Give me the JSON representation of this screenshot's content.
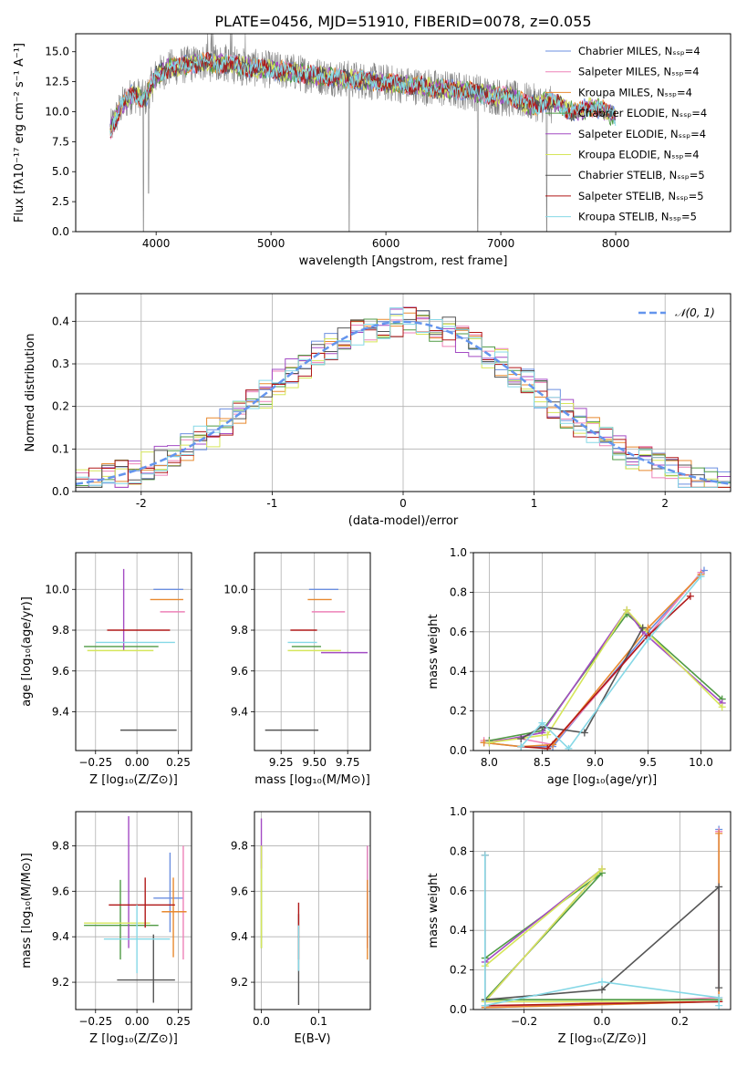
{
  "figure": {
    "title": "PLATE=0456, MJD=51910, FIBERID=0078, z=0.055"
  },
  "colors": {
    "Chabrier MILES": "#6b8fe0",
    "Salpeter MILES": "#ee82b8",
    "Kroupa MILES": "#e8892f",
    "Chabrier ELODIE": "#4f9a44",
    "Salpeter ELODIE": "#a34bc4",
    "Kroupa ELODIE": "#d6e65a",
    "Chabrier STELIB": "#555555",
    "Salpeter STELIB": "#b01818",
    "Kroupa STELIB": "#86d8e6",
    "data": "#808080",
    "normal": "#6495ed"
  },
  "chart_data": [
    {
      "id": "spectrum",
      "type": "line",
      "title": "PLATE=0456, MJD=51910, FIBERID=0078, z=0.055",
      "xlabel": "wavelength [Angstrom, rest frame]",
      "ylabel": "Flux [fλ10⁻¹⁷ erg cm⁻² s⁻¹ A⁻¹]",
      "xlim": [
        3300,
        9000
      ],
      "ylim": [
        0,
        16.5
      ],
      "xticks": [
        4000,
        5000,
        6000,
        7000,
        8000
      ],
      "yticks": [
        0.0,
        2.5,
        5.0,
        7.5,
        10.0,
        12.5,
        15.0
      ],
      "grid": false,
      "legend_position": "top-right",
      "legend": [
        "Chabrier MILES, Nₛₛₚ=4",
        "Salpeter MILES, Nₛₛₚ=4",
        "Kroupa MILES, Nₛₛₚ=4",
        "Chabrier ELODIE, Nₛₛₚ=4",
        "Salpeter ELODIE, Nₛₛₚ=4",
        "Kroupa ELODIE, Nₛₛₚ=4",
        "Chabrier STELIB, Nₛₛₚ=5",
        "Salpeter STELIB, Nₛₛₚ=5",
        "Kroupa STELIB, Nₛₛₚ=5"
      ],
      "continuum": {
        "x": [
          3600,
          3700,
          3800,
          3900,
          4000,
          4100,
          4200,
          4400,
          4600,
          4800,
          5000,
          5200,
          5400,
          5600,
          5800,
          6000,
          6200,
          6400,
          6600,
          6800,
          7000,
          7200,
          7400,
          7600,
          7800,
          8000,
          8200,
          8400
        ],
        "y": [
          8.5,
          10.5,
          11.5,
          11.0,
          13.0,
          13.6,
          13.8,
          14.1,
          14.0,
          13.7,
          13.5,
          13.3,
          13.0,
          12.8,
          12.6,
          12.4,
          12.2,
          12.0,
          11.8,
          11.6,
          11.2,
          10.9,
          10.6,
          10.4,
          10.1,
          9.9,
          9.6,
          9.4
        ]
      },
      "absorption_dips": [
        {
          "x": 3890,
          "y": 0.0
        },
        {
          "x": 3935,
          "y": 3.2
        },
        {
          "x": 5680,
          "y": 0.0
        },
        {
          "x": 6800,
          "y": 0.0
        },
        {
          "x": 7400,
          "y": 0.0
        }
      ]
    },
    {
      "id": "residuals",
      "type": "histogram",
      "xlabel": "(data-model)/error",
      "ylabel": "Normed distribution",
      "xlim": [
        -2.5,
        2.5
      ],
      "ylim": [
        0,
        0.465
      ],
      "xticks": [
        -2,
        -1,
        0,
        1,
        2
      ],
      "yticks": [
        0.0,
        0.1,
        0.2,
        0.3,
        0.4
      ],
      "grid": true,
      "legend_position": "top-right",
      "legend": [
        "𝒩(0, 1)"
      ],
      "bin_width": 0.1,
      "bin_start": -2.5,
      "mean_profile": "normal(0,1) with per-model noise"
    },
    {
      "id": "age_vs_Z",
      "type": "errorbar",
      "xlabel": "Z [log₁₀(Z/Z⊙)]",
      "ylabel": "age  [log₁₀(age/yr)]",
      "xlim": [
        -0.37,
        0.33
      ],
      "ylim": [
        9.21,
        10.18
      ],
      "xticks": [
        -0.25,
        0.0,
        0.25
      ],
      "xticklabels": [
        "−0.25",
        "0.00",
        "0.25"
      ],
      "yticks": [
        9.4,
        9.6,
        9.8,
        10.0
      ],
      "grid": true
    },
    {
      "id": "age_vs_mass",
      "type": "errorbar",
      "xlabel": "mass [log₁₀(M/M⊙)]",
      "ylabel": "",
      "xlim": [
        9.05,
        9.92
      ],
      "ylim": [
        9.21,
        10.18
      ],
      "xticks": [
        9.25,
        9.5,
        9.75
      ],
      "xticklabels": [
        "9.25",
        "9.50",
        "9.75"
      ],
      "yticks": [
        9.4,
        9.6,
        9.8,
        10.0
      ],
      "grid": true
    },
    {
      "id": "weight_vs_age",
      "type": "line",
      "xlabel": "age  [log₁₀(age/yr)]",
      "ylabel": "mass weight",
      "xlim": [
        7.85,
        10.28
      ],
      "ylim": [
        0,
        1.0
      ],
      "xticks": [
        8.0,
        8.5,
        9.0,
        9.5,
        10.0
      ],
      "yticks": [
        0.0,
        0.2,
        0.4,
        0.6,
        0.8,
        1.0
      ],
      "grid": true,
      "series": [
        {
          "name": "Chabrier MILES",
          "x": [
            7.95,
            8.3,
            8.6,
            9.5,
            10.03
          ],
          "y": [
            0.04,
            0.02,
            0.02,
            0.6,
            0.91
          ]
        },
        {
          "name": "Salpeter MILES",
          "x": [
            7.95,
            8.3,
            8.6,
            9.5,
            10.0
          ],
          "y": [
            0.05,
            0.06,
            0.03,
            0.58,
            0.9
          ]
        },
        {
          "name": "Kroupa MILES",
          "x": [
            7.95,
            8.3,
            8.6,
            9.5,
            10.0
          ],
          "y": [
            0.04,
            0.02,
            0.03,
            0.62,
            0.89
          ]
        },
        {
          "name": "Chabrier ELODIE",
          "x": [
            8.0,
            8.5,
            9.3,
            9.45,
            10.2
          ],
          "y": [
            0.05,
            0.1,
            0.69,
            0.62,
            0.26
          ]
        },
        {
          "name": "Salpeter ELODIE",
          "x": [
            8.0,
            8.5,
            9.3,
            9.45,
            10.2
          ],
          "y": [
            0.04,
            0.09,
            0.71,
            0.6,
            0.24
          ]
        },
        {
          "name": "Kroupa ELODIE",
          "x": [
            8.0,
            8.55,
            9.3,
            9.45,
            10.2
          ],
          "y": [
            0.04,
            0.08,
            0.71,
            0.62,
            0.22
          ]
        },
        {
          "name": "Chabrier STELIB",
          "x": [
            8.3,
            8.5,
            8.9,
            9.45
          ],
          "y": [
            0.06,
            0.12,
            0.09,
            0.62
          ]
        },
        {
          "name": "Salpeter STELIB",
          "x": [
            8.3,
            8.55,
            9.5,
            9.9
          ],
          "y": [
            0.02,
            0.01,
            0.58,
            0.78
          ]
        },
        {
          "name": "Kroupa STELIB",
          "x": [
            8.3,
            8.5,
            8.75,
            9.5,
            10.0
          ],
          "y": [
            0.02,
            0.14,
            0.01,
            0.56,
            0.88
          ]
        }
      ]
    },
    {
      "id": "mass_vs_Z",
      "type": "errorbar",
      "xlabel": "Z [log₁₀(Z/Z⊙)]",
      "ylabel": "mass [log₁₀(M/M⊙)]",
      "xlim": [
        -0.37,
        0.33
      ],
      "ylim": [
        9.08,
        9.95
      ],
      "xticks": [
        -0.25,
        0.0,
        0.25
      ],
      "xticklabels": [
        "−0.25",
        "0.00",
        "0.25"
      ],
      "yticks": [
        9.2,
        9.4,
        9.6,
        9.8
      ],
      "grid": true
    },
    {
      "id": "mass_vs_ebv",
      "type": "errorbar",
      "xlabel": "E(B-V)",
      "ylabel": "",
      "xlim": [
        -0.012,
        0.19
      ],
      "ylim": [
        9.08,
        9.95
      ],
      "xticks": [
        0.0,
        0.1
      ],
      "xticklabels": [
        "0.0",
        "0.1"
      ],
      "yticks": [
        9.2,
        9.4,
        9.6,
        9.8
      ],
      "grid": true
    },
    {
      "id": "weight_vs_Z",
      "type": "line",
      "xlabel": "Z [log₁₀(Z/Z⊙)]",
      "ylabel": "mass weight",
      "xlim": [
        -0.33,
        0.33
      ],
      "ylim": [
        0,
        1.0
      ],
      "xticks": [
        -0.2,
        0.0,
        0.2
      ],
      "xticklabels": [
        "−0.2",
        "0.0",
        "0.2"
      ],
      "yticks": [
        0.0,
        0.2,
        0.4,
        0.6,
        0.8,
        1.0
      ],
      "grid": true,
      "series": [
        {
          "name": "Chabrier MILES",
          "x": [
            -0.3,
            0.3,
            0.3,
            0.3
          ],
          "y": [
            0.01,
            0.04,
            0.91,
            0.04
          ]
        },
        {
          "name": "Salpeter MILES",
          "x": [
            -0.3,
            0.3,
            0.3
          ],
          "y": [
            0.01,
            0.06,
            0.9
          ]
        },
        {
          "name": "Kroupa MILES",
          "x": [
            -0.3,
            0.3,
            0.3
          ],
          "y": [
            0.01,
            0.04,
            0.89
          ]
        },
        {
          "name": "Chabrier ELODIE",
          "x": [
            -0.3,
            0.0,
            -0.3,
            0.3
          ],
          "y": [
            0.26,
            0.69,
            0.05,
            0.05
          ]
        },
        {
          "name": "Salpeter ELODIE",
          "x": [
            -0.3,
            0.0,
            -0.3,
            0.3
          ],
          "y": [
            0.24,
            0.71,
            0.04,
            0.04
          ]
        },
        {
          "name": "Kroupa ELODIE",
          "x": [
            -0.3,
            0.0,
            -0.3,
            0.3
          ],
          "y": [
            0.22,
            0.71,
            0.04,
            0.04
          ]
        },
        {
          "name": "Chabrier STELIB",
          "x": [
            -0.3,
            0.0,
            0.3,
            0.3
          ],
          "y": [
            0.05,
            0.1,
            0.62,
            0.11
          ]
        },
        {
          "name": "Salpeter STELIB",
          "x": [
            -0.3,
            -0.3,
            0.3
          ],
          "y": [
            0.78,
            0.02,
            0.04
          ]
        },
        {
          "name": "Kroupa STELIB",
          "x": [
            -0.3,
            -0.3,
            0.0,
            0.3,
            0.3
          ],
          "y": [
            0.78,
            0.02,
            0.14,
            0.06,
            0.02
          ]
        }
      ]
    }
  ],
  "errorbars": {
    "age_vs_Z": [
      {
        "name": "Chabrier MILES",
        "x": 0.2,
        "xerr": [
          0.1,
          0.08
        ],
        "y": 10.0,
        "yerr": [
          0,
          0
        ]
      },
      {
        "name": "Salpeter MILES",
        "x": 0.22,
        "xerr": [
          0.08,
          0.07
        ],
        "y": 9.89,
        "yerr": [
          0,
          0
        ]
      },
      {
        "name": "Kroupa MILES",
        "x": 0.18,
        "xerr": [
          0.1,
          0.1
        ],
        "y": 9.95,
        "yerr": [
          0,
          0
        ]
      },
      {
        "name": "Chabrier ELODIE",
        "x": -0.1,
        "xerr": [
          0.22,
          0.23
        ],
        "y": 9.72,
        "yerr": [
          0,
          0
        ]
      },
      {
        "name": "Salpeter ELODIE",
        "x": -0.08,
        "xerr": [
          0,
          0
        ],
        "y": 9.9,
        "yerr": [
          0.2,
          0.2
        ]
      },
      {
        "name": "Kroupa ELODIE",
        "x": -0.1,
        "xerr": [
          0.2,
          0.2
        ],
        "y": 9.7,
        "yerr": [
          0,
          0
        ]
      },
      {
        "name": "Chabrier STELIB",
        "x": 0.12,
        "xerr": [
          0.22,
          0.12
        ],
        "y": 9.31,
        "yerr": [
          0,
          0
        ]
      },
      {
        "name": "Salpeter STELIB",
        "x": 0.1,
        "xerr": [
          0.28,
          0.1
        ],
        "y": 9.8,
        "yerr": [
          0,
          0
        ]
      },
      {
        "name": "Kroupa STELIB",
        "x": 0.0,
        "xerr": [
          0.25,
          0.23
        ],
        "y": 9.74,
        "yerr": [
          0,
          0
        ]
      }
    ],
    "age_vs_mass": [
      {
        "name": "Chabrier MILES",
        "x": 9.58,
        "xerr": [
          0.12,
          0.1
        ],
        "y": 10.0,
        "yerr": [
          0,
          0
        ]
      },
      {
        "name": "Salpeter MILES",
        "x": 9.6,
        "xerr": [
          0.12,
          0.13
        ],
        "y": 9.89,
        "yerr": [
          0,
          0
        ]
      },
      {
        "name": "Kroupa MILES",
        "x": 9.55,
        "xerr": [
          0.1,
          0.08
        ],
        "y": 9.95,
        "yerr": [
          0,
          0
        ]
      },
      {
        "name": "Chabrier ELODIE",
        "x": 9.45,
        "xerr": [
          0.12,
          0.1
        ],
        "y": 9.72,
        "yerr": [
          0,
          0
        ]
      },
      {
        "name": "Salpeter ELODIE",
        "x": 9.65,
        "xerr": [
          0.1,
          0.25
        ],
        "y": 9.69,
        "yerr": [
          0,
          0
        ]
      },
      {
        "name": "Kroupa ELODIE",
        "x": 9.5,
        "xerr": [
          0.2,
          0.2
        ],
        "y": 9.7,
        "yerr": [
          0,
          0
        ]
      },
      {
        "name": "Chabrier STELIB",
        "x": 9.33,
        "xerr": [
          0.2,
          0.2
        ],
        "y": 9.31,
        "yerr": [
          0,
          0
        ]
      },
      {
        "name": "Salpeter STELIB",
        "x": 9.42,
        "xerr": [
          0.1,
          0.1
        ],
        "y": 9.8,
        "yerr": [
          0,
          0
        ]
      },
      {
        "name": "Kroupa STELIB",
        "x": 9.4,
        "xerr": [
          0.1,
          0.12
        ],
        "y": 9.74,
        "yerr": [
          0,
          0
        ]
      }
    ],
    "mass_vs_Z": [
      {
        "name": "Chabrier MILES",
        "x": 0.2,
        "xerr": [
          0.1,
          0.08
        ],
        "y": 9.57,
        "yerr": [
          0.15,
          0.2
        ]
      },
      {
        "name": "Salpeter MILES",
        "x": 0.28,
        "xerr": [
          0,
          0
        ],
        "y": 9.6,
        "yerr": [
          0.3,
          0.2
        ]
      },
      {
        "name": "Kroupa MILES",
        "x": 0.22,
        "xerr": [
          0.07,
          0.08
        ],
        "y": 9.51,
        "yerr": [
          0.2,
          0.15
        ]
      },
      {
        "name": "Chabrier ELODIE",
        "x": -0.1,
        "xerr": [
          0.22,
          0.23
        ],
        "y": 9.45,
        "yerr": [
          0.15,
          0.2
        ]
      },
      {
        "name": "Salpeter ELODIE",
        "x": -0.05,
        "xerr": [
          0,
          0
        ],
        "y": 9.65,
        "yerr": [
          0.3,
          0.28
        ]
      },
      {
        "name": "Kroupa ELODIE",
        "x": -0.12,
        "xerr": [
          0.2,
          0.2
        ],
        "y": 9.46,
        "yerr": [
          0,
          0
        ]
      },
      {
        "name": "Chabrier STELIB",
        "x": 0.1,
        "xerr": [
          0.22,
          0.13
        ],
        "y": 9.21,
        "yerr": [
          0.1,
          0.2
        ]
      },
      {
        "name": "Salpeter STELIB",
        "x": 0.05,
        "xerr": [
          0.22,
          0.18
        ],
        "y": 9.54,
        "yerr": [
          0.1,
          0.12
        ]
      },
      {
        "name": "Kroupa STELIB",
        "x": 0.0,
        "xerr": [
          0.2,
          0.2
        ],
        "y": 9.39,
        "yerr": [
          0.15,
          0.15
        ]
      }
    ],
    "mass_vs_ebv": [
      {
        "name": "Chabrier MILES",
        "x": 0.185,
        "xerr": [
          0,
          0
        ],
        "y": 9.6,
        "yerr": [
          0.25,
          0.2
        ]
      },
      {
        "name": "Salpeter MILES",
        "x": 0.185,
        "xerr": [
          0,
          0
        ],
        "y": 9.65,
        "yerr": [
          0.3,
          0.15
        ]
      },
      {
        "name": "Kroupa MILES",
        "x": 0.185,
        "xerr": [
          0,
          0
        ],
        "y": 9.5,
        "yerr": [
          0.2,
          0.15
        ]
      },
      {
        "name": "Chabrier ELODIE",
        "x": 0.0,
        "xerr": [
          0,
          0
        ],
        "y": 9.55,
        "yerr": [
          0.2,
          0.25
        ]
      },
      {
        "name": "Salpeter ELODIE",
        "x": 0.0,
        "xerr": [
          0,
          0
        ],
        "y": 9.8,
        "yerr": [
          0.1,
          0.12
        ]
      },
      {
        "name": "Kroupa ELODIE",
        "x": 0.0,
        "xerr": [
          0,
          0
        ],
        "y": 9.6,
        "yerr": [
          0.25,
          0.2
        ]
      },
      {
        "name": "Chabrier STELIB",
        "x": 0.065,
        "xerr": [
          0,
          0
        ],
        "y": 9.3,
        "yerr": [
          0.2,
          0.2
        ]
      },
      {
        "name": "Salpeter STELIB",
        "x": 0.065,
        "xerr": [
          0,
          0
        ],
        "y": 9.4,
        "yerr": [
          0.1,
          0.15
        ]
      },
      {
        "name": "Kroupa STELIB",
        "x": 0.065,
        "xerr": [
          0,
          0
        ],
        "y": 9.35,
        "yerr": [
          0.1,
          0.1
        ]
      }
    ]
  }
}
